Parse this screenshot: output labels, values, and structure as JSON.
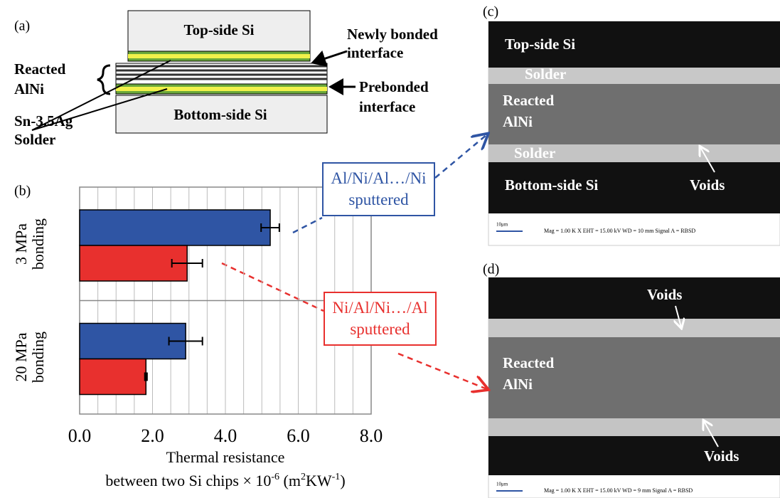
{
  "chart_data": {
    "type": "hbar",
    "panel_label": "(b)",
    "categories": [
      "3 MPa bonding",
      "20 MPa bonding"
    ],
    "series": [
      {
        "name": "Al/Ni/Al…/Ni sputtered",
        "color": "#2f55a4",
        "values": [
          5.23,
          2.91
        ],
        "errors": [
          0.25,
          0.46
        ]
      },
      {
        "name": "Ni/Al/Ni…/Al sputtered",
        "color": "#e8302e",
        "values": [
          2.95,
          1.82
        ],
        "errors": [
          0.42,
          0.03
        ]
      }
    ],
    "xlim": [
      0,
      8
    ],
    "xticks": [
      {
        "value": 0,
        "label": "0.0"
      },
      {
        "value": 2,
        "label": "2.0"
      },
      {
        "value": 4,
        "label": "4.0"
      },
      {
        "value": 6,
        "label": "6.0"
      },
      {
        "value": 8,
        "label": "8.0"
      }
    ],
    "minor_xticks": [
      0.5,
      1,
      1.5,
      2.5,
      3,
      3.5,
      4.5,
      5,
      5.5,
      6.5,
      7,
      7.5
    ],
    "grid": true,
    "xlabel": [
      "Thermal resistance",
      [
        "between two Si chips × 10",
        "-6",
        " (m",
        "2",
        "KW",
        "-1",
        ")"
      ]
    ]
  },
  "panels": {
    "a": {
      "label": "(a)",
      "top_si": "Top-side Si",
      "newly_bonded": [
        "Newly bonded",
        "interface"
      ],
      "reacted": [
        "Reacted",
        "AlNi"
      ],
      "solder": [
        "Sn-3.5Ag",
        "Solder"
      ],
      "prebonded": [
        "Prebonded",
        "interface"
      ],
      "bottom_si": "Bottom-side Si"
    },
    "c": {
      "label": "(c)",
      "top_si": "Top-side Si",
      "solder_top": "Solder",
      "reacted": [
        "Reacted",
        "AlNi"
      ],
      "solder_bottom": "Solder",
      "bottom_si": "Bottom-side Si",
      "voids": "Voids",
      "scale": "10μm",
      "info": "Mag =  1.00 K X     EHT = 15.00 kV      WD =  10 mm     Signal A = RBSD"
    },
    "d": {
      "label": "(d)",
      "voids_top": "Voids",
      "reacted": [
        "Reacted",
        "AlNi"
      ],
      "voids_bottom": "Voids",
      "scale": "10μm",
      "info": "Mag =  1.00 K X     EHT = 15.00 kV      WD =  9 mm     Signal A = RBSD"
    }
  }
}
